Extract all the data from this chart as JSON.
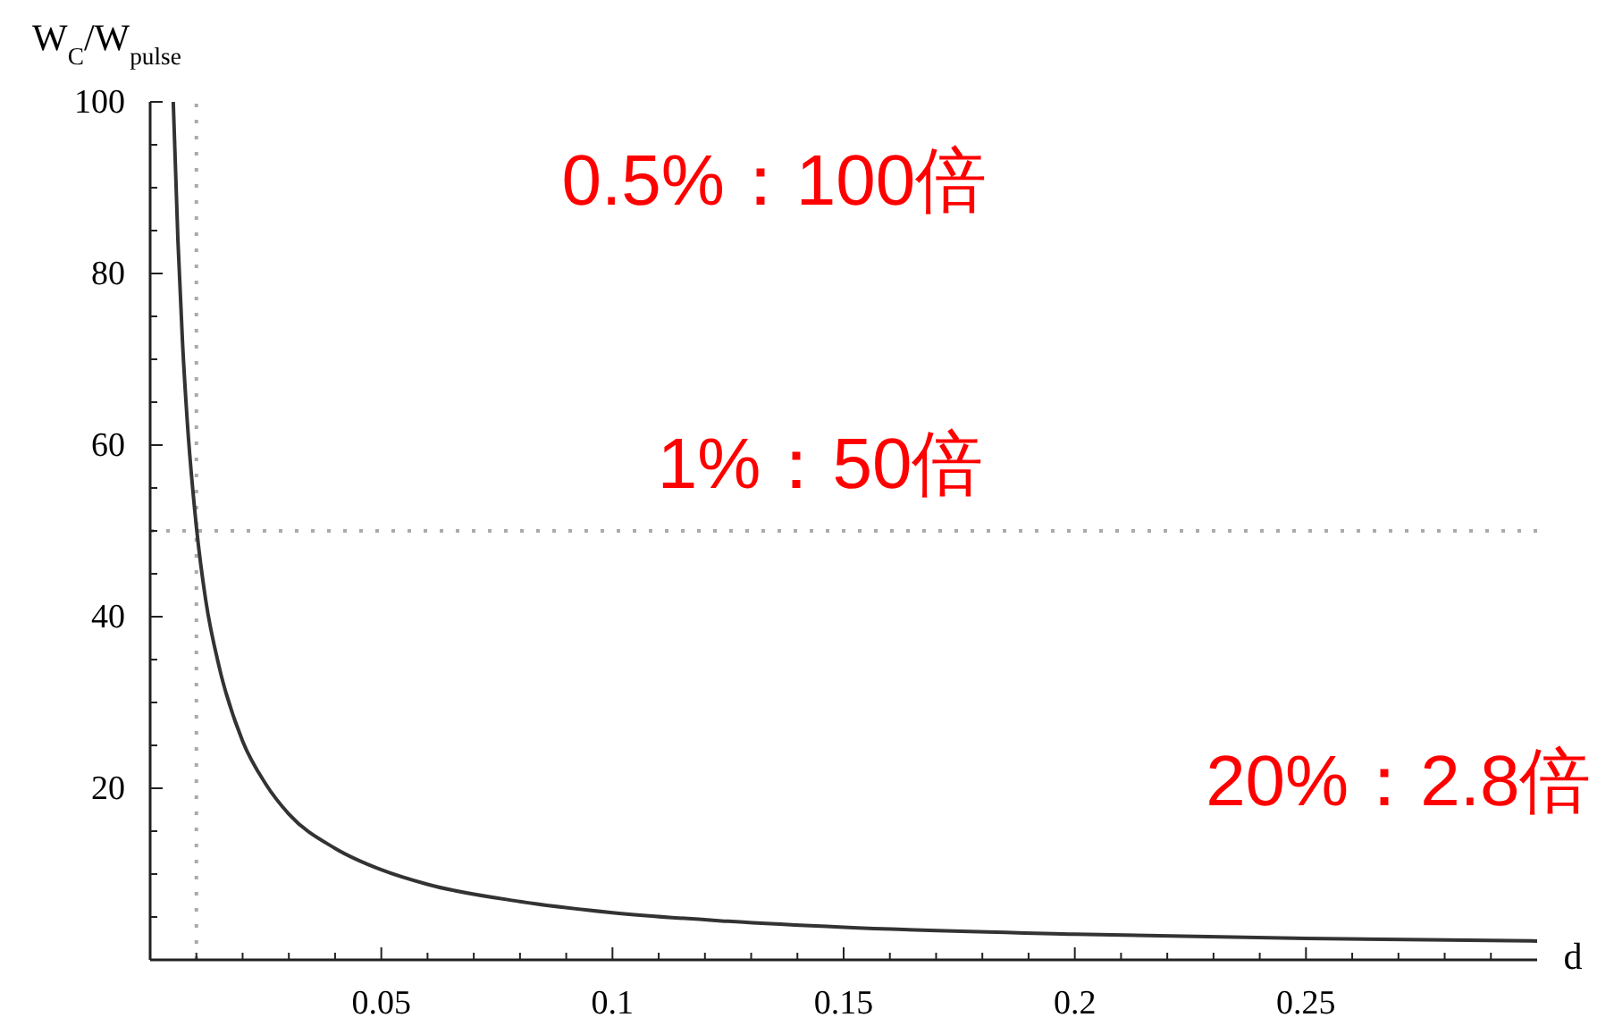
{
  "chart_data": {
    "type": "line",
    "xlabel": "d",
    "ylabel": "W$_{C}$/W$_{pulse}$",
    "x": [
      0.005,
      0.006,
      0.007,
      0.008,
      0.01,
      0.012,
      0.015,
      0.02,
      0.025,
      0.03,
      0.04,
      0.05,
      0.06,
      0.08,
      0.1,
      0.125,
      0.15,
      0.2,
      0.25,
      0.3
    ],
    "series": [
      {
        "color": "#333333",
        "values": [
          100,
          84,
          72,
          63,
          50.5,
          42,
          34,
          25.5,
          20.5,
          17,
          13,
          10.5,
          8.8,
          6.8,
          5.5,
          4.5,
          3.8,
          3,
          2.5,
          2.2
        ]
      }
    ],
    "xlim": [
      0,
      0.3
    ],
    "ylim": [
      0,
      100
    ],
    "xticks": [
      {
        "value": 0.01,
        "label": null
      },
      {
        "value": 0.02,
        "label": null
      },
      {
        "value": 0.03,
        "label": null
      },
      {
        "value": 0.04,
        "label": null
      },
      {
        "value": 0.05,
        "label": "0.05"
      },
      {
        "value": 0.06,
        "label": null
      },
      {
        "value": 0.07,
        "label": null
      },
      {
        "value": 0.08,
        "label": null
      },
      {
        "value": 0.09,
        "label": null
      },
      {
        "value": 0.1,
        "label": "0.1"
      },
      {
        "value": 0.11,
        "label": null
      },
      {
        "value": 0.12,
        "label": null
      },
      {
        "value": 0.13,
        "label": null
      },
      {
        "value": 0.14,
        "label": null
      },
      {
        "value": 0.15,
        "label": "0.15"
      },
      {
        "value": 0.16,
        "label": null
      },
      {
        "value": 0.17,
        "label": null
      },
      {
        "value": 0.18,
        "label": null
      },
      {
        "value": 0.19,
        "label": null
      },
      {
        "value": 0.2,
        "label": "0.2"
      },
      {
        "value": 0.21,
        "label": null
      },
      {
        "value": 0.22,
        "label": null
      },
      {
        "value": 0.23,
        "label": null
      },
      {
        "value": 0.24,
        "label": null
      },
      {
        "value": 0.25,
        "label": "0.25"
      },
      {
        "value": 0.26,
        "label": null
      },
      {
        "value": 0.27,
        "label": null
      },
      {
        "value": 0.28,
        "label": null
      },
      {
        "value": 0.29,
        "label": null
      }
    ],
    "yticks": [
      {
        "value": 5,
        "label": null
      },
      {
        "value": 10,
        "label": null
      },
      {
        "value": 15,
        "label": null
      },
      20,
      {
        "value": 25,
        "label": null
      },
      {
        "value": 30,
        "label": null
      },
      {
        "value": 35,
        "label": null
      },
      40,
      {
        "value": 45,
        "label": null
      },
      {
        "value": 50,
        "label": null
      },
      {
        "value": 55,
        "label": null
      },
      60,
      {
        "value": 65,
        "label": null
      },
      {
        "value": 70,
        "label": null
      },
      {
        "value": 75,
        "label": null
      },
      80,
      {
        "value": 85,
        "label": null
      },
      {
        "value": 90,
        "label": null
      },
      {
        "value": 95,
        "label": null
      },
      100
    ],
    "ref_lines": [
      {
        "axis": "x",
        "value": 0.01,
        "color": "#aaaaaa",
        "line_style": "dotted"
      },
      {
        "axis": "y",
        "value": 50,
        "color": "#aaaaaa",
        "line_style": "dotted"
      }
    ],
    "annotations": [
      "0.5%：100倍",
      "1%：50倍",
      "20%：2.8倍"
    ],
    "grid": false,
    "marker": "none",
    "line_style": "solid"
  }
}
